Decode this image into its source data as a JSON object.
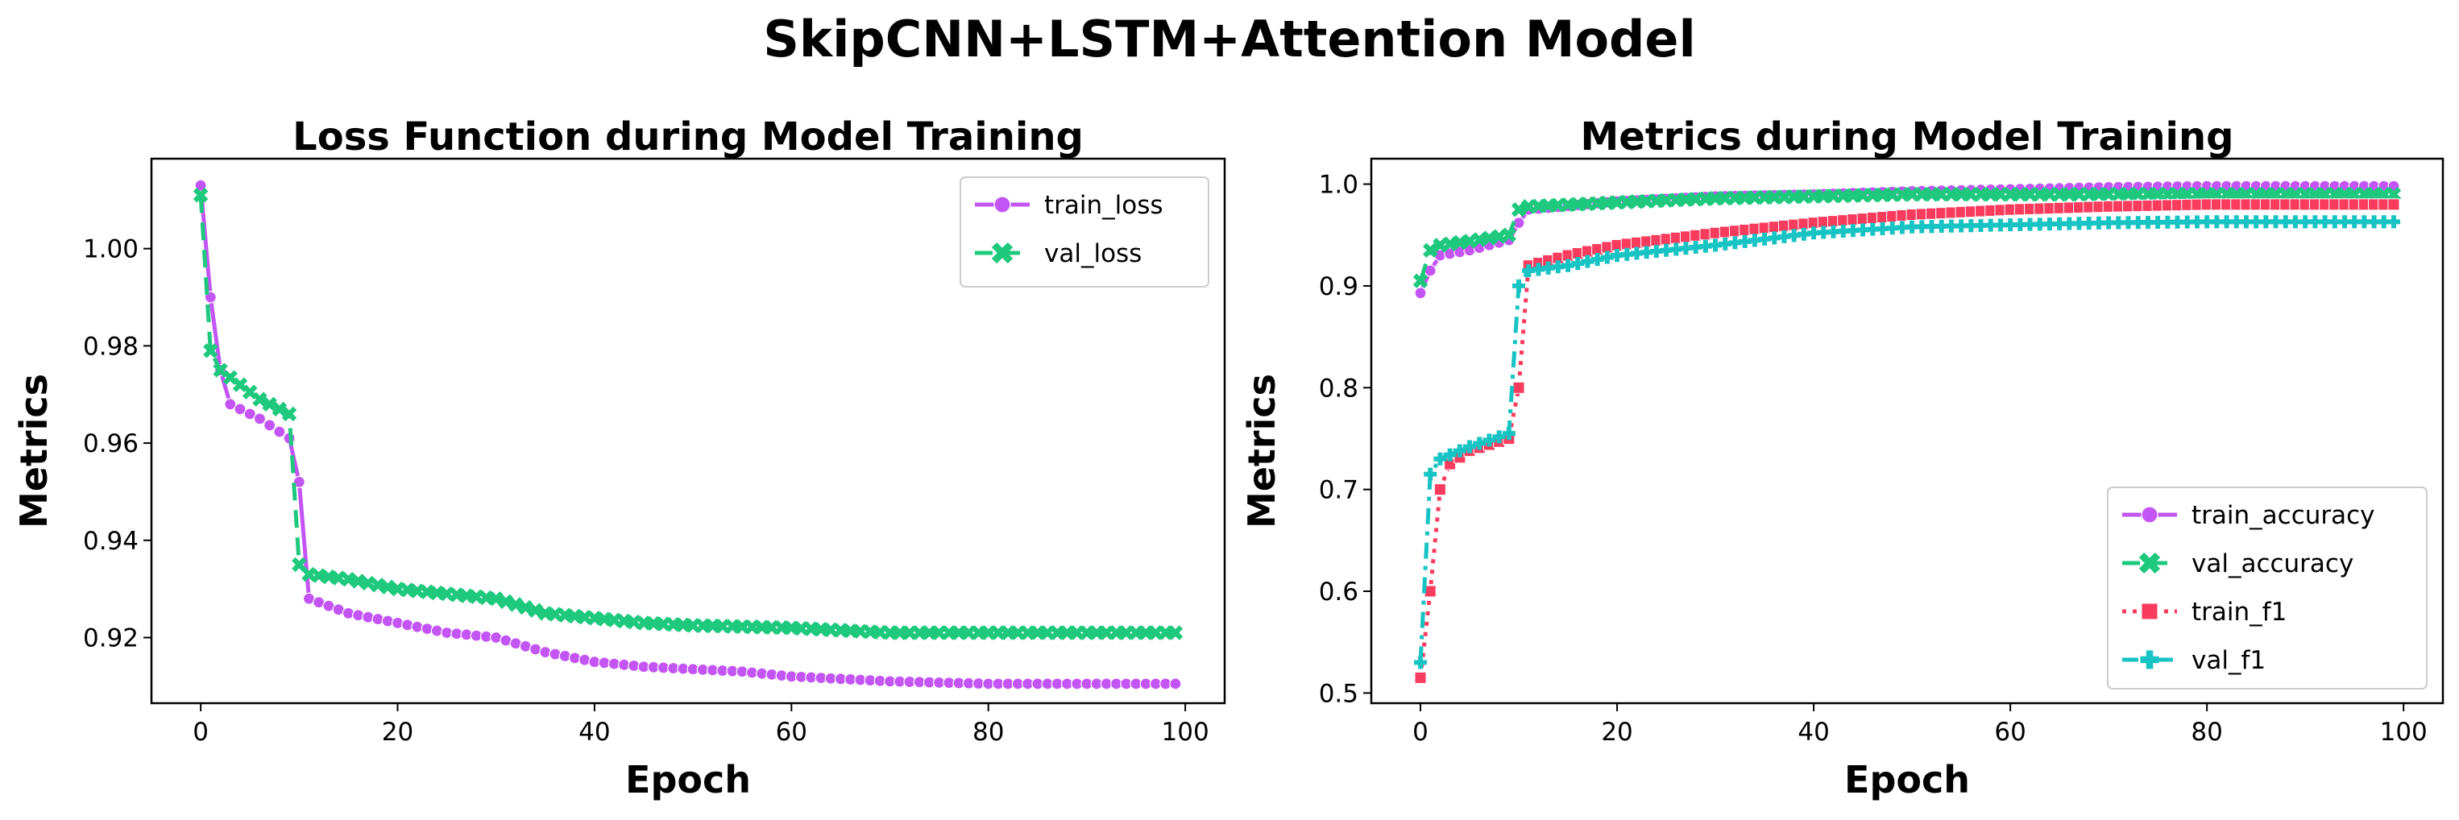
{
  "title": "SkipCNN+LSTM+Attention Model",
  "chart_data": [
    {
      "type": "line",
      "title": "Loss Function during Model Training",
      "xlabel": "Epoch",
      "ylabel": "Metrics",
      "xlim": [
        -5,
        104
      ],
      "ylim": [
        0.9065,
        1.0185
      ],
      "xticks": [
        0,
        20,
        40,
        60,
        80,
        100
      ],
      "xtick_labels": [
        "0",
        "20",
        "40",
        "60",
        "80",
        "100"
      ],
      "yticks": [
        0.92,
        0.94,
        0.96,
        0.98,
        1.0
      ],
      "ytick_labels": [
        "0.92",
        "0.94",
        "0.96",
        "0.98",
        "1.00"
      ],
      "legend_position": "top-right",
      "series": [
        {
          "name": "train_loss",
          "color": "#c355f5",
          "marker": "circle",
          "linestyle": "solid",
          "anchors": [
            [
              0,
              1.013
            ],
            [
              1,
              0.99
            ],
            [
              2,
              0.975
            ],
            [
              3,
              0.968
            ],
            [
              6,
              0.965
            ],
            [
              9,
              0.961
            ],
            [
              10,
              0.952
            ],
            [
              11,
              0.928
            ],
            [
              15,
              0.925
            ],
            [
              20,
              0.923
            ],
            [
              25,
              0.921
            ],
            [
              30,
              0.92
            ],
            [
              35,
              0.917
            ],
            [
              40,
              0.915
            ],
            [
              45,
              0.914
            ],
            [
              50,
              0.9135
            ],
            [
              55,
              0.913
            ],
            [
              60,
              0.912
            ],
            [
              65,
              0.9115
            ],
            [
              70,
              0.911
            ],
            [
              80,
              0.9105
            ],
            [
              99,
              0.9105
            ]
          ]
        },
        {
          "name": "val_loss",
          "color": "#1ec97e",
          "marker": "x",
          "linestyle": "dashed",
          "anchors": [
            [
              0,
              1.011
            ],
            [
              1,
              0.979
            ],
            [
              2,
              0.975
            ],
            [
              4,
              0.972
            ],
            [
              6,
              0.969
            ],
            [
              8,
              0.967
            ],
            [
              9,
              0.966
            ],
            [
              10,
              0.935
            ],
            [
              11,
              0.933
            ],
            [
              15,
              0.932
            ],
            [
              20,
              0.93
            ],
            [
              25,
              0.929
            ],
            [
              30,
              0.928
            ],
            [
              35,
              0.925
            ],
            [
              40,
              0.924
            ],
            [
              45,
              0.923
            ],
            [
              50,
              0.9225
            ],
            [
              60,
              0.922
            ],
            [
              70,
              0.921
            ],
            [
              80,
              0.921
            ],
            [
              99,
              0.921
            ]
          ]
        }
      ]
    },
    {
      "type": "line",
      "title": "Metrics during Model Training",
      "xlabel": "Epoch",
      "ylabel": "Metrics",
      "xlim": [
        -5,
        104
      ],
      "ylim": [
        0.49,
        1.025
      ],
      "xticks": [
        0,
        20,
        40,
        60,
        80,
        100
      ],
      "xtick_labels": [
        "0",
        "20",
        "40",
        "60",
        "80",
        "100"
      ],
      "yticks": [
        0.5,
        0.6,
        0.7,
        0.8,
        0.9,
        1.0
      ],
      "ytick_labels": [
        "0.5",
        "0.6",
        "0.7",
        "0.8",
        "0.9",
        "1.0"
      ],
      "legend_position": "lower-right",
      "series": [
        {
          "name": "train_accuracy",
          "color": "#c355f5",
          "marker": "circle",
          "linestyle": "solid",
          "anchors": [
            [
              0,
              0.893
            ],
            [
              1,
              0.915
            ],
            [
              2,
              0.93
            ],
            [
              5,
              0.935
            ],
            [
              9,
              0.945
            ],
            [
              10,
              0.962
            ],
            [
              11,
              0.975
            ],
            [
              20,
              0.983
            ],
            [
              30,
              0.988
            ],
            [
              40,
              0.99
            ],
            [
              50,
              0.993
            ],
            [
              60,
              0.995
            ],
            [
              70,
              0.997
            ],
            [
              80,
              0.998
            ],
            [
              99,
              0.998
            ]
          ]
        },
        {
          "name": "val_accuracy",
          "color": "#1ec97e",
          "marker": "x",
          "linestyle": "dashed",
          "anchors": [
            [
              0,
              0.905
            ],
            [
              1,
              0.935
            ],
            [
              2,
              0.94
            ],
            [
              5,
              0.944
            ],
            [
              9,
              0.95
            ],
            [
              10,
              0.975
            ],
            [
              11,
              0.978
            ],
            [
              20,
              0.982
            ],
            [
              30,
              0.986
            ],
            [
              40,
              0.988
            ],
            [
              50,
              0.99
            ],
            [
              60,
              0.99
            ],
            [
              70,
              0.99
            ],
            [
              80,
              0.99
            ],
            [
              99,
              0.99
            ]
          ]
        },
        {
          "name": "train_f1",
          "color": "#f93b5e",
          "marker": "square",
          "linestyle": "dotted",
          "anchors": [
            [
              0,
              0.515
            ],
            [
              1,
              0.6
            ],
            [
              2,
              0.7
            ],
            [
              3,
              0.725
            ],
            [
              5,
              0.738
            ],
            [
              9,
              0.75
            ],
            [
              10,
              0.8
            ],
            [
              11,
              0.92
            ],
            [
              15,
              0.93
            ],
            [
              20,
              0.94
            ],
            [
              30,
              0.952
            ],
            [
              40,
              0.962
            ],
            [
              50,
              0.97
            ],
            [
              60,
              0.975
            ],
            [
              70,
              0.978
            ],
            [
              80,
              0.98
            ],
            [
              99,
              0.98
            ]
          ]
        },
        {
          "name": "val_f1",
          "color": "#17c3c3",
          "marker": "plus",
          "linestyle": "dashdot",
          "anchors": [
            [
              0,
              0.53
            ],
            [
              1,
              0.715
            ],
            [
              2,
              0.73
            ],
            [
              5,
              0.742
            ],
            [
              9,
              0.755
            ],
            [
              10,
              0.9
            ],
            [
              11,
              0.915
            ],
            [
              15,
              0.92
            ],
            [
              20,
              0.93
            ],
            [
              30,
              0.94
            ],
            [
              40,
              0.952
            ],
            [
              50,
              0.958
            ],
            [
              60,
              0.96
            ],
            [
              70,
              0.962
            ],
            [
              80,
              0.963
            ],
            [
              99,
              0.963
            ]
          ]
        }
      ]
    }
  ]
}
